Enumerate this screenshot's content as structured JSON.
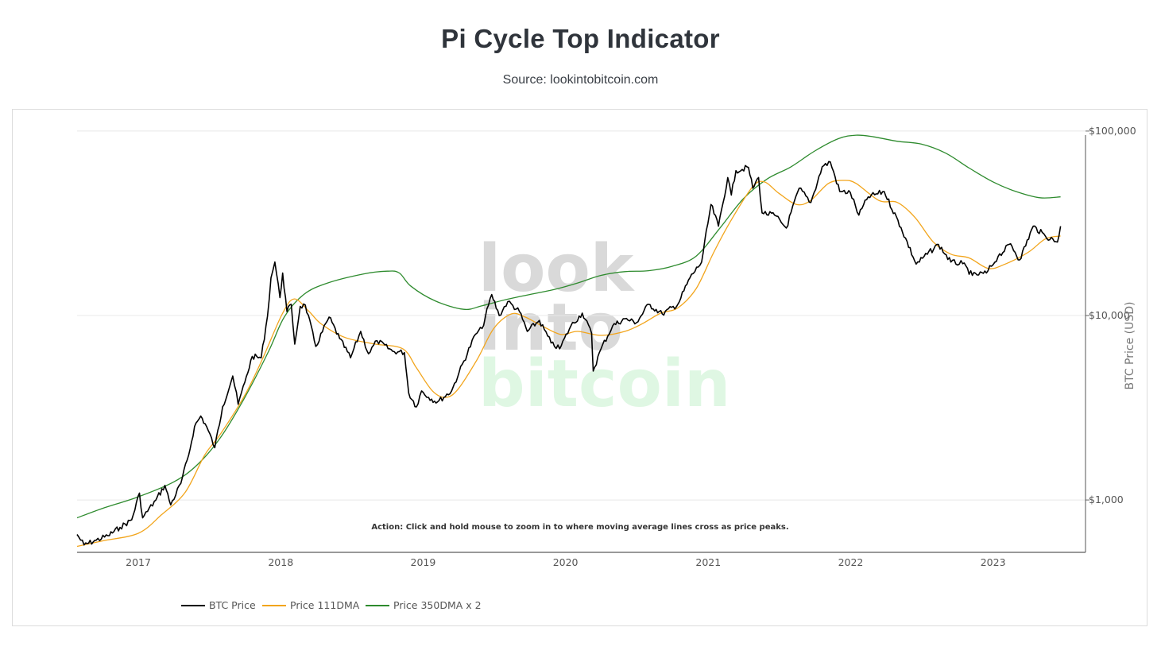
{
  "page": {
    "title": "Pi Cycle Top Indicator",
    "subtitle": "Source: lookintobitcoin.com"
  },
  "annotation": "Action: Click and hold mouse to zoom in to where moving average lines cross as price peaks.",
  "watermark": [
    "look",
    "into",
    "bitcoin"
  ],
  "colors": {
    "btc": "#000000",
    "dma111": "#f2a51c",
    "dma350x2": "#2e8b2e",
    "grid": "#e8e8e8",
    "watermark_gray": "#d9d9d9",
    "watermark_green": "#dff7e3"
  },
  "chart_data": {
    "type": "line",
    "title": "Pi Cycle Top Indicator",
    "ylabel": "BTC Price (USD)",
    "xlabel": "",
    "yscale": "log",
    "xlim": [
      "2016-07-28",
      "2023-08-26"
    ],
    "ylim": [
      520,
      105000
    ],
    "ytick_values": [
      1000,
      10000,
      100000
    ],
    "ytick_labels": [
      "$1,000",
      "$10,000",
      "$100,000"
    ],
    "xtick_values": [
      "2017-01-01",
      "2018-01-01",
      "2019-01-01",
      "2020-01-01",
      "2021-01-01",
      "2022-01-01",
      "2023-01-01"
    ],
    "xtick_labels": [
      "2017",
      "2018",
      "2019",
      "2020",
      "2021",
      "2022",
      "2023"
    ],
    "legend_position": "bottom-left",
    "series": [
      {
        "name": "BTC Price",
        "color": "#000000",
        "points": [
          [
            "2016-07-28",
            650
          ],
          [
            "2016-08-15",
            570
          ],
          [
            "2016-09-15",
            605
          ],
          [
            "2016-10-15",
            640
          ],
          [
            "2016-11-15",
            710
          ],
          [
            "2016-12-15",
            780
          ],
          [
            "2017-01-04",
            1090
          ],
          [
            "2017-01-12",
            800
          ],
          [
            "2017-02-15",
            1000
          ],
          [
            "2017-03-10",
            1200
          ],
          [
            "2017-03-25",
            940
          ],
          [
            "2017-04-20",
            1230
          ],
          [
            "2017-05-10",
            1750
          ],
          [
            "2017-05-25",
            2500
          ],
          [
            "2017-06-10",
            2850
          ],
          [
            "2017-06-25",
            2500
          ],
          [
            "2017-07-16",
            1920
          ],
          [
            "2017-08-05",
            3200
          ],
          [
            "2017-08-31",
            4700
          ],
          [
            "2017-09-14",
            3300
          ],
          [
            "2017-10-01",
            4350
          ],
          [
            "2017-10-20",
            6000
          ],
          [
            "2017-11-12",
            5900
          ],
          [
            "2017-11-28",
            9900
          ],
          [
            "2017-12-07",
            16000
          ],
          [
            "2017-12-17",
            19500
          ],
          [
            "2017-12-30",
            12500
          ],
          [
            "2018-01-06",
            17000
          ],
          [
            "2018-01-17",
            10500
          ],
          [
            "2018-01-28",
            11500
          ],
          [
            "2018-02-06",
            7000
          ],
          [
            "2018-02-20",
            11200
          ],
          [
            "2018-03-05",
            11400
          ],
          [
            "2018-04-01",
            6800
          ],
          [
            "2018-05-05",
            9800
          ],
          [
            "2018-06-01",
            7500
          ],
          [
            "2018-06-29",
            5900
          ],
          [
            "2018-07-25",
            8200
          ],
          [
            "2018-08-14",
            6200
          ],
          [
            "2018-09-05",
            7300
          ],
          [
            "2018-10-15",
            6400
          ],
          [
            "2018-11-14",
            6300
          ],
          [
            "2018-11-25",
            3800
          ],
          [
            "2018-12-15",
            3200
          ],
          [
            "2018-12-28",
            3900
          ],
          [
            "2019-01-15",
            3600
          ],
          [
            "2019-02-07",
            3400
          ],
          [
            "2019-03-15",
            3900
          ],
          [
            "2019-04-03",
            4900
          ],
          [
            "2019-05-15",
            7900
          ],
          [
            "2019-06-01",
            8500
          ],
          [
            "2019-06-26",
            13000
          ],
          [
            "2019-07-15",
            10000
          ],
          [
            "2019-08-06",
            11900
          ],
          [
            "2019-09-05",
            10500
          ],
          [
            "2019-09-25",
            8200
          ],
          [
            "2019-10-26",
            9400
          ],
          [
            "2019-11-25",
            7100
          ],
          [
            "2019-12-17",
            6600
          ],
          [
            "2020-01-15",
            8800
          ],
          [
            "2020-02-13",
            10300
          ],
          [
            "2020-03-08",
            8000
          ],
          [
            "2020-03-12",
            5000
          ],
          [
            "2020-04-01",
            6600
          ],
          [
            "2020-05-01",
            8800
          ],
          [
            "2020-06-01",
            9600
          ],
          [
            "2020-07-01",
            9150
          ],
          [
            "2020-08-01",
            11500
          ],
          [
            "2020-09-05",
            10200
          ],
          [
            "2020-10-15",
            11500
          ],
          [
            "2020-11-15",
            16000
          ],
          [
            "2020-12-15",
            19500
          ],
          [
            "2021-01-08",
            40000
          ],
          [
            "2021-01-27",
            30500
          ],
          [
            "2021-02-20",
            56000
          ],
          [
            "2021-03-01",
            45000
          ],
          [
            "2021-03-13",
            61000
          ],
          [
            "2021-04-14",
            63500
          ],
          [
            "2021-04-25",
            49000
          ],
          [
            "2021-05-10",
            56000
          ],
          [
            "2021-05-19",
            36000
          ],
          [
            "2021-06-20",
            35000
          ],
          [
            "2021-07-20",
            29800
          ],
          [
            "2021-08-22",
            49000
          ],
          [
            "2021-09-21",
            41000
          ],
          [
            "2021-10-20",
            64000
          ],
          [
            "2021-11-10",
            68000
          ],
          [
            "2021-12-04",
            47000
          ],
          [
            "2021-12-31",
            46500
          ],
          [
            "2022-01-22",
            35000
          ],
          [
            "2022-02-15",
            44000
          ],
          [
            "2022-03-28",
            47000
          ],
          [
            "2022-05-10",
            30000
          ],
          [
            "2022-06-18",
            19000
          ],
          [
            "2022-08-14",
            24300
          ],
          [
            "2022-09-15",
            19500
          ],
          [
            "2022-10-15",
            19100
          ],
          [
            "2022-11-09",
            16500
          ],
          [
            "2022-12-15",
            17000
          ],
          [
            "2023-01-14",
            20900
          ],
          [
            "2023-02-15",
            24500
          ],
          [
            "2023-03-10",
            20000
          ],
          [
            "2023-04-14",
            30500
          ],
          [
            "2023-05-15",
            27000
          ],
          [
            "2023-06-15",
            25000
          ],
          [
            "2023-06-23",
            30500
          ]
        ]
      },
      {
        "name": "Price 111DMA",
        "color": "#f2a51c",
        "points": [
          [
            "2016-07-28",
            560
          ],
          [
            "2016-10-01",
            600
          ],
          [
            "2017-01-01",
            660
          ],
          [
            "2017-03-01",
            830
          ],
          [
            "2017-05-01",
            1100
          ],
          [
            "2017-06-20",
            1750
          ],
          [
            "2017-08-01",
            2300
          ],
          [
            "2017-10-01",
            3700
          ],
          [
            "2017-11-15",
            5800
          ],
          [
            "2018-01-05",
            10200
          ],
          [
            "2018-02-05",
            12300
          ],
          [
            "2018-03-15",
            10500
          ],
          [
            "2018-04-15",
            9000
          ],
          [
            "2018-06-15",
            7600
          ],
          [
            "2018-09-01",
            7000
          ],
          [
            "2018-11-10",
            6600
          ],
          [
            "2018-12-15",
            5200
          ],
          [
            "2019-01-25",
            3900
          ],
          [
            "2019-02-28",
            3600
          ],
          [
            "2019-04-01",
            4000
          ],
          [
            "2019-05-20",
            5800
          ],
          [
            "2019-07-01",
            8500
          ],
          [
            "2019-08-15",
            10200
          ],
          [
            "2019-09-20",
            9800
          ],
          [
            "2019-11-01",
            8800
          ],
          [
            "2019-12-20",
            7900
          ],
          [
            "2020-02-01",
            8200
          ],
          [
            "2020-04-01",
            7800
          ],
          [
            "2020-06-01",
            8200
          ],
          [
            "2020-07-15",
            9000
          ],
          [
            "2020-09-01",
            10300
          ],
          [
            "2020-10-15",
            11000
          ],
          [
            "2020-12-01",
            14000
          ],
          [
            "2021-01-15",
            22000
          ],
          [
            "2021-03-01",
            33000
          ],
          [
            "2021-04-25",
            50000
          ],
          [
            "2021-05-25",
            53000
          ],
          [
            "2021-07-01",
            46000
          ],
          [
            "2021-08-15",
            40000
          ],
          [
            "2021-09-20",
            42000
          ],
          [
            "2021-11-05",
            52000
          ],
          [
            "2021-12-15",
            54000
          ],
          [
            "2022-01-15",
            52000
          ],
          [
            "2022-03-15",
            42000
          ],
          [
            "2022-05-01",
            41000
          ],
          [
            "2022-06-15",
            34000
          ],
          [
            "2022-08-01",
            25000
          ],
          [
            "2022-09-15",
            21500
          ],
          [
            "2022-11-01",
            20500
          ],
          [
            "2022-12-20",
            18000
          ],
          [
            "2023-02-01",
            19000
          ],
          [
            "2023-04-01",
            22000
          ],
          [
            "2023-05-15",
            26000
          ],
          [
            "2023-06-23",
            27000
          ]
        ]
      },
      {
        "name": "Price 350DMA x 2",
        "color": "#2e8b2e",
        "points": [
          [
            "2016-07-28",
            800
          ],
          [
            "2016-10-01",
            900
          ],
          [
            "2017-01-01",
            1040
          ],
          [
            "2017-04-01",
            1250
          ],
          [
            "2017-06-01",
            1550
          ],
          [
            "2017-08-01",
            2200
          ],
          [
            "2017-10-01",
            3600
          ],
          [
            "2017-12-01",
            6400
          ],
          [
            "2018-01-10",
            9800
          ],
          [
            "2018-03-01",
            13000
          ],
          [
            "2018-05-01",
            15000
          ],
          [
            "2018-08-01",
            16800
          ],
          [
            "2018-10-01",
            17400
          ],
          [
            "2018-11-01",
            17000
          ],
          [
            "2018-12-01",
            14400
          ],
          [
            "2019-02-01",
            12000
          ],
          [
            "2019-04-15",
            10800
          ],
          [
            "2019-06-01",
            11300
          ],
          [
            "2019-08-01",
            12200
          ],
          [
            "2019-10-01",
            13000
          ],
          [
            "2019-12-01",
            13800
          ],
          [
            "2020-02-01",
            15000
          ],
          [
            "2020-04-01",
            16500
          ],
          [
            "2020-06-01",
            17300
          ],
          [
            "2020-08-01",
            17500
          ],
          [
            "2020-10-01",
            18500
          ],
          [
            "2020-12-01",
            21000
          ],
          [
            "2021-02-01",
            30000
          ],
          [
            "2021-04-01",
            43000
          ],
          [
            "2021-06-01",
            55000
          ],
          [
            "2021-08-01",
            64000
          ],
          [
            "2021-10-01",
            78000
          ],
          [
            "2021-12-01",
            91000
          ],
          [
            "2022-01-15",
            95000
          ],
          [
            "2022-03-01",
            93000
          ],
          [
            "2022-05-01",
            88000
          ],
          [
            "2022-07-01",
            85000
          ],
          [
            "2022-09-01",
            76000
          ],
          [
            "2022-11-01",
            63000
          ],
          [
            "2023-01-01",
            53000
          ],
          [
            "2023-03-01",
            47000
          ],
          [
            "2023-05-01",
            43500
          ],
          [
            "2023-06-23",
            44000
          ]
        ]
      }
    ]
  }
}
